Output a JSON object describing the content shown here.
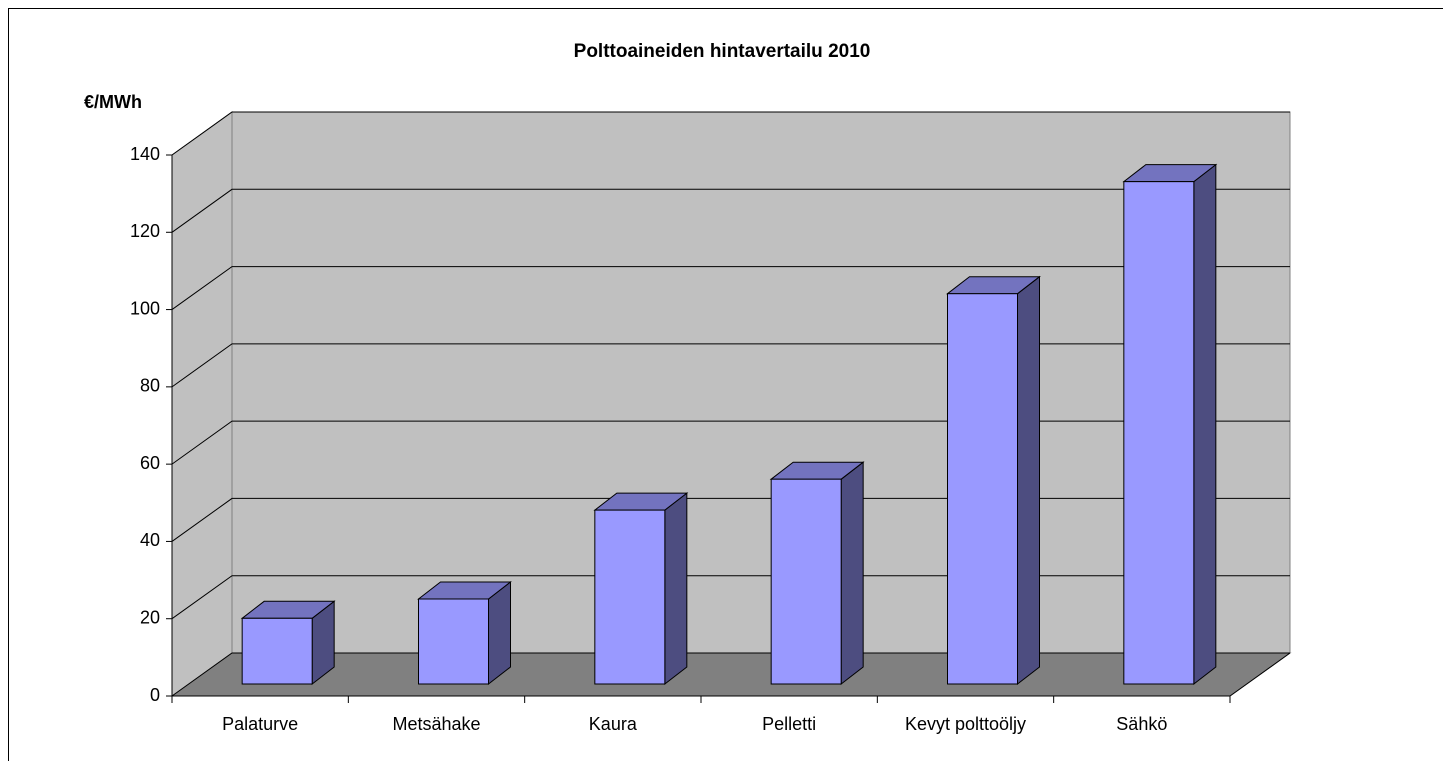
{
  "chart_data": {
    "type": "bar3d",
    "title": "Polttoaineiden hintavertailu 2010",
    "y_label": "€/MWh",
    "categories": [
      "Palaturve",
      "Metsähake",
      "Kaura",
      "Pelletti",
      "Kevyt polttoöljy",
      "Sähkö"
    ],
    "values": [
      17,
      22,
      45,
      53,
      101,
      130
    ],
    "color": "#9999ff",
    "ylim": [
      0,
      140
    ],
    "yticks": [
      0,
      20,
      40,
      60,
      80,
      100,
      120,
      140
    ],
    "grid": true
  }
}
